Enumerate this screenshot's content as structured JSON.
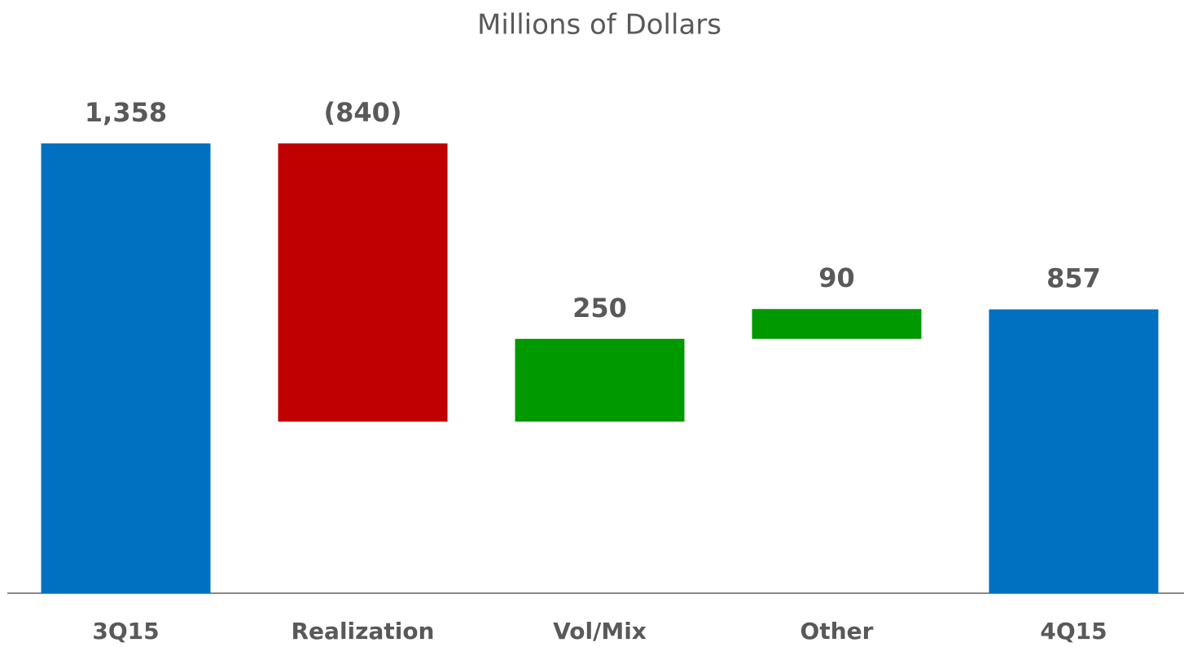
{
  "chart_data": {
    "type": "waterfall",
    "title": "Millions of Dollars",
    "categories": [
      "3Q15",
      "Realization",
      "Vol/Mix",
      "Other",
      "4Q15"
    ],
    "values": [
      1358,
      -840,
      250,
      90,
      857
    ],
    "value_labels": [
      "1,358",
      "(840)",
      "250",
      "90",
      "857"
    ],
    "measure": [
      "total",
      "relative",
      "relative",
      "relative",
      "total"
    ],
    "colors": [
      "#0070c0",
      "#c00000",
      "#009900",
      "#009900",
      "#0070c0"
    ]
  }
}
